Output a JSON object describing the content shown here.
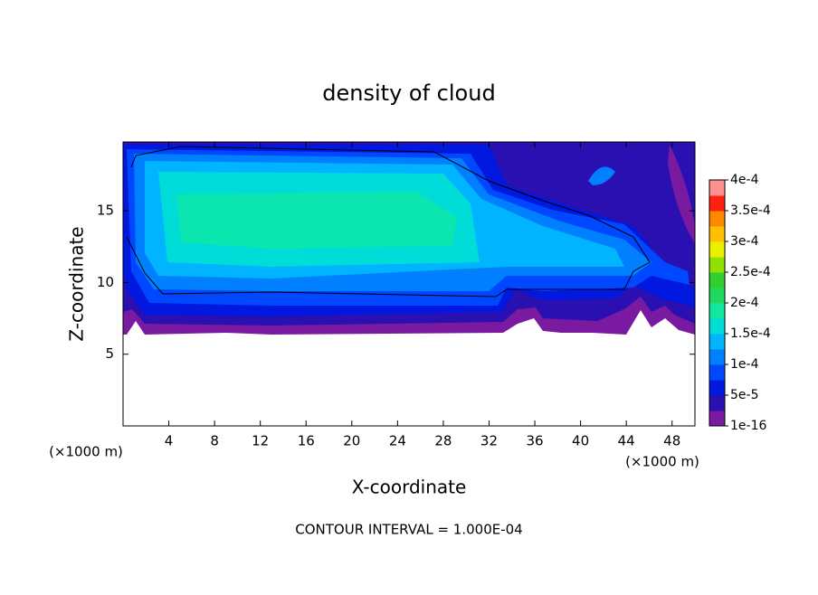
{
  "chart_data": {
    "type": "contour",
    "title": "density of cloud",
    "x_label": "X-coordinate",
    "y_label": "Z-coordinate",
    "x_unit": "(×1000 m)",
    "footer": "CONTOUR INTERVAL = 1.000E-04",
    "xlim": [
      0,
      50
    ],
    "xticks": [
      4,
      8,
      12,
      16,
      20,
      24,
      28,
      32,
      36,
      40,
      44,
      48
    ],
    "ylim": [
      0,
      19.8
    ],
    "yticks": [
      5,
      10,
      15
    ],
    "colorbar": {
      "clim": [
        1e-16,
        0.0004
      ],
      "ticks": [
        {
          "value": 1e-16,
          "label": "1e-16"
        },
        {
          "value": 5e-05,
          "label": "5e-5"
        },
        {
          "value": 0.0001,
          "label": "1e-4"
        },
        {
          "value": 0.00015,
          "label": "1.5e-4"
        },
        {
          "value": 0.0002,
          "label": "2e-4"
        },
        {
          "value": 0.00025,
          "label": "2.5e-4"
        },
        {
          "value": 0.0003,
          "label": "3e-4"
        },
        {
          "value": 0.00035,
          "label": "3.5e-4"
        },
        {
          "value": 0.0004,
          "label": "4e-4"
        }
      ],
      "colors": [
        "#7a1aa0",
        "#2a10b0",
        "#0018e0",
        "#0048ff",
        "#0080ff",
        "#00b4ff",
        "#00dcd8",
        "#10e8a0",
        "#20d860",
        "#30d030",
        "#90e000",
        "#e8f000",
        "#ffc000",
        "#ff8800",
        "#ff2010",
        "#ff9090"
      ]
    }
  }
}
